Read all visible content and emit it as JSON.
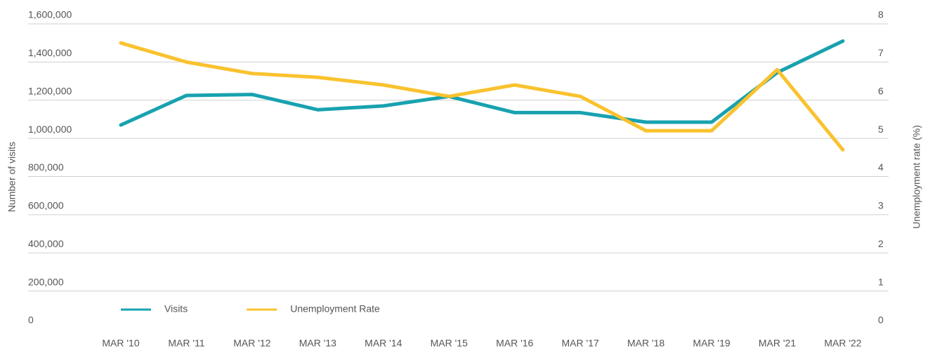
{
  "chart_data": {
    "type": "line",
    "categories": [
      "MAR '10",
      "MAR '11",
      "MAR '12",
      "MAR '13",
      "MAR '14",
      "MAR '15",
      "MAR '16",
      "MAR '17",
      "MAR '18",
      "MAR '19",
      "MAR '21",
      "MAR '22"
    ],
    "series": [
      {
        "name": "Visits",
        "color": "#18a2b0",
        "values": [
          1070000,
          1225000,
          1230000,
          1150000,
          1170000,
          1220000,
          1135000,
          1135000,
          1085000,
          1085000,
          1345000,
          1510000
        ]
      },
      {
        "name": "Unemployment Rate",
        "color": "#f9c22e",
        "axis": "y2",
        "values": [
          7.5,
          7.0,
          6.7,
          6.6,
          6.4,
          6.1,
          6.4,
          6.1,
          5.2,
          5.2,
          6.8,
          4.7
        ]
      }
    ],
    "y_label": "Number of visits",
    "y2_label": "Unemployment rate (%)",
    "ylim": [
      0,
      1600000
    ],
    "yticks": [
      {
        "value": 0,
        "label": "0"
      },
      {
        "value": 200000,
        "label": "200,000"
      },
      {
        "value": 400000,
        "label": "400,000"
      },
      {
        "value": 600000,
        "label": "600,000"
      },
      {
        "value": 800000,
        "label": "800,000"
      },
      {
        "value": 1000000,
        "label": "1,000,000"
      },
      {
        "value": 1200000,
        "label": "1,200,000"
      },
      {
        "value": 1400000,
        "label": "1,400,000"
      },
      {
        "value": 1600000,
        "label": "1,600,000"
      }
    ],
    "y2lim": [
      0,
      8
    ],
    "y2ticks": [
      0,
      1,
      2,
      3,
      4,
      5,
      6,
      7,
      8
    ],
    "grid": true,
    "legend": "lower left"
  }
}
